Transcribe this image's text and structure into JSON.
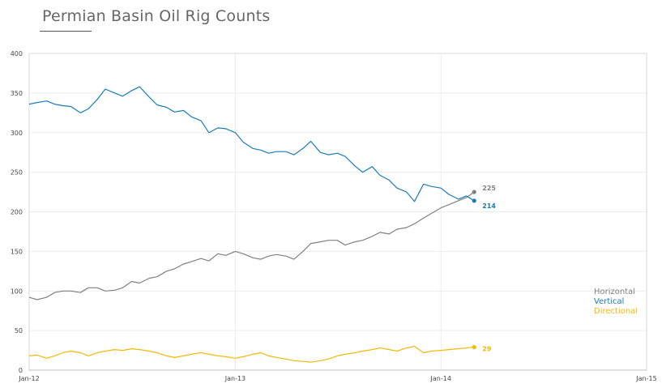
{
  "chart_data": {
    "type": "line",
    "title": "Permian Basin Oil Rig Counts",
    "xlabel": "",
    "ylabel": "",
    "x_range": [
      "2012-01-01",
      "2015-01-01"
    ],
    "ylim": [
      0,
      400
    ],
    "y_ticks": [
      0,
      50,
      100,
      150,
      200,
      250,
      300,
      350,
      400
    ],
    "x_ticks": [
      "Jan-12",
      "Jan-13",
      "Jan-14",
      "Jan-15"
    ],
    "grid": true,
    "legend_position": "right",
    "series": [
      {
        "name": "Horizontal",
        "color": "#808080",
        "end_label": "225",
        "points": [
          [
            "2012-01-01",
            92
          ],
          [
            "2012-01-15",
            89
          ],
          [
            "2012-02-01",
            92
          ],
          [
            "2012-02-15",
            98
          ],
          [
            "2012-03-01",
            100
          ],
          [
            "2012-03-15",
            100
          ],
          [
            "2012-04-01",
            98
          ],
          [
            "2012-04-15",
            104
          ],
          [
            "2012-05-01",
            104
          ],
          [
            "2012-05-15",
            100
          ],
          [
            "2012-06-01",
            101
          ],
          [
            "2012-06-15",
            104
          ],
          [
            "2012-07-01",
            112
          ],
          [
            "2012-07-15",
            110
          ],
          [
            "2012-08-01",
            116
          ],
          [
            "2012-08-15",
            118
          ],
          [
            "2012-09-01",
            125
          ],
          [
            "2012-09-15",
            128
          ],
          [
            "2012-10-01",
            134
          ],
          [
            "2012-10-15",
            137
          ],
          [
            "2012-11-01",
            141
          ],
          [
            "2012-11-15",
            138
          ],
          [
            "2012-12-01",
            147
          ],
          [
            "2012-12-15",
            145
          ],
          [
            "2013-01-01",
            150
          ],
          [
            "2013-01-15",
            147
          ],
          [
            "2013-02-01",
            142
          ],
          [
            "2013-02-15",
            140
          ],
          [
            "2013-03-01",
            144
          ],
          [
            "2013-03-15",
            146
          ],
          [
            "2013-04-01",
            144
          ],
          [
            "2013-04-15",
            140
          ],
          [
            "2013-05-01",
            150
          ],
          [
            "2013-05-15",
            160
          ],
          [
            "2013-06-01",
            162
          ],
          [
            "2013-06-15",
            164
          ],
          [
            "2013-07-01",
            164
          ],
          [
            "2013-07-15",
            158
          ],
          [
            "2013-08-01",
            162
          ],
          [
            "2013-08-15",
            164
          ],
          [
            "2013-09-01",
            169
          ],
          [
            "2013-09-15",
            174
          ],
          [
            "2013-10-01",
            172
          ],
          [
            "2013-10-15",
            178
          ],
          [
            "2013-11-01",
            180
          ],
          [
            "2013-11-15",
            185
          ],
          [
            "2013-12-01",
            192
          ],
          [
            "2013-12-15",
            198
          ],
          [
            "2014-01-01",
            205
          ],
          [
            "2014-01-15",
            209
          ],
          [
            "2014-02-01",
            214
          ],
          [
            "2014-02-15",
            218
          ],
          [
            "2014-03-01",
            225
          ]
        ]
      },
      {
        "name": "Vertical",
        "color": "#1a7bb9",
        "end_label": "214",
        "points": [
          [
            "2012-01-01",
            336
          ],
          [
            "2012-01-15",
            338
          ],
          [
            "2012-02-01",
            340
          ],
          [
            "2012-02-15",
            336
          ],
          [
            "2012-03-01",
            334
          ],
          [
            "2012-03-15",
            333
          ],
          [
            "2012-04-01",
            325
          ],
          [
            "2012-04-15",
            330
          ],
          [
            "2012-05-01",
            342
          ],
          [
            "2012-05-15",
            355
          ],
          [
            "2012-06-01",
            350
          ],
          [
            "2012-06-15",
            346
          ],
          [
            "2012-07-01",
            353
          ],
          [
            "2012-07-15",
            358
          ],
          [
            "2012-08-01",
            345
          ],
          [
            "2012-08-15",
            335
          ],
          [
            "2012-09-01",
            332
          ],
          [
            "2012-09-15",
            326
          ],
          [
            "2012-10-01",
            328
          ],
          [
            "2012-10-15",
            320
          ],
          [
            "2012-11-01",
            315
          ],
          [
            "2012-11-15",
            300
          ],
          [
            "2012-12-01",
            306
          ],
          [
            "2012-12-15",
            305
          ],
          [
            "2013-01-01",
            300
          ],
          [
            "2013-01-15",
            288
          ],
          [
            "2013-02-01",
            280
          ],
          [
            "2013-02-15",
            278
          ],
          [
            "2013-03-01",
            274
          ],
          [
            "2013-03-15",
            276
          ],
          [
            "2013-04-01",
            276
          ],
          [
            "2013-04-15",
            272
          ],
          [
            "2013-05-01",
            280
          ],
          [
            "2013-05-15",
            289
          ],
          [
            "2013-06-01",
            275
          ],
          [
            "2013-06-15",
            272
          ],
          [
            "2013-07-01",
            274
          ],
          [
            "2013-07-15",
            270
          ],
          [
            "2013-08-01",
            258
          ],
          [
            "2013-08-15",
            250
          ],
          [
            "2013-09-01",
            257
          ],
          [
            "2013-09-15",
            246
          ],
          [
            "2013-10-01",
            240
          ],
          [
            "2013-10-15",
            230
          ],
          [
            "2013-11-01",
            225
          ],
          [
            "2013-11-15",
            213
          ],
          [
            "2013-12-01",
            235
          ],
          [
            "2013-12-15",
            232
          ],
          [
            "2014-01-01",
            230
          ],
          [
            "2014-01-15",
            222
          ],
          [
            "2014-02-01",
            216
          ],
          [
            "2014-02-15",
            220
          ],
          [
            "2014-03-01",
            214
          ]
        ]
      },
      {
        "name": "Directional",
        "color": "#f2b90c",
        "end_label": "29",
        "points": [
          [
            "2012-01-01",
            18
          ],
          [
            "2012-01-15",
            19
          ],
          [
            "2012-02-01",
            15
          ],
          [
            "2012-02-15",
            18
          ],
          [
            "2012-03-01",
            22
          ],
          [
            "2012-03-15",
            24
          ],
          [
            "2012-04-01",
            22
          ],
          [
            "2012-04-15",
            18
          ],
          [
            "2012-05-01",
            22
          ],
          [
            "2012-05-15",
            24
          ],
          [
            "2012-06-01",
            26
          ],
          [
            "2012-06-15",
            25
          ],
          [
            "2012-07-01",
            27
          ],
          [
            "2012-07-15",
            26
          ],
          [
            "2012-08-01",
            24
          ],
          [
            "2012-08-15",
            22
          ],
          [
            "2012-09-01",
            18
          ],
          [
            "2012-09-15",
            16
          ],
          [
            "2012-10-01",
            18
          ],
          [
            "2012-10-15",
            20
          ],
          [
            "2012-11-01",
            22
          ],
          [
            "2012-11-15",
            20
          ],
          [
            "2012-12-01",
            18
          ],
          [
            "2012-12-15",
            17
          ],
          [
            "2013-01-01",
            15
          ],
          [
            "2013-01-15",
            17
          ],
          [
            "2013-02-01",
            20
          ],
          [
            "2013-02-15",
            22
          ],
          [
            "2013-03-01",
            18
          ],
          [
            "2013-03-15",
            16
          ],
          [
            "2013-04-01",
            14
          ],
          [
            "2013-04-15",
            12
          ],
          [
            "2013-05-01",
            11
          ],
          [
            "2013-05-15",
            10
          ],
          [
            "2013-06-01",
            12
          ],
          [
            "2013-06-15",
            14
          ],
          [
            "2013-07-01",
            18
          ],
          [
            "2013-07-15",
            20
          ],
          [
            "2013-08-01",
            22
          ],
          [
            "2013-08-15",
            24
          ],
          [
            "2013-09-01",
            26
          ],
          [
            "2013-09-15",
            28
          ],
          [
            "2013-10-01",
            26
          ],
          [
            "2013-10-15",
            24
          ],
          [
            "2013-11-01",
            28
          ],
          [
            "2013-11-15",
            30
          ],
          [
            "2013-12-01",
            22
          ],
          [
            "2013-12-15",
            24
          ],
          [
            "2014-01-01",
            25
          ],
          [
            "2014-01-15",
            26
          ],
          [
            "2014-02-01",
            27
          ],
          [
            "2014-02-15",
            28
          ],
          [
            "2014-03-01",
            29
          ]
        ]
      }
    ]
  }
}
